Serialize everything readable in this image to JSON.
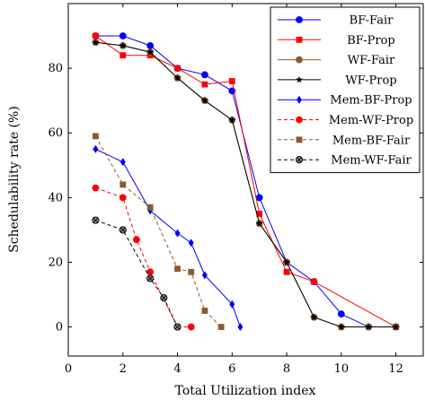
{
  "chart_data": {
    "type": "line",
    "title": "",
    "xlabel": "Total Utilization index",
    "ylabel": "Schedulability rate (%)",
    "xlim": [
      0,
      13
    ],
    "ylim": [
      -9,
      100
    ],
    "xticks": [
      0,
      2,
      4,
      6,
      8,
      10,
      12
    ],
    "yticks": [
      0,
      20,
      40,
      60,
      80
    ],
    "grid": false,
    "legend_position": "top-right",
    "series": [
      {
        "name": "BF-Fair",
        "color": "#0000ff",
        "dash": "solid",
        "marker": "circle",
        "x": [
          1,
          2,
          3,
          4,
          5,
          6,
          7,
          8,
          9,
          10,
          11,
          12
        ],
        "y": [
          90,
          90,
          87,
          80,
          78,
          73,
          40,
          20,
          14,
          4,
          0,
          0
        ]
      },
      {
        "name": "BF-Prop",
        "color": "#ff0000",
        "dash": "solid",
        "marker": "square",
        "x": [
          1,
          2,
          3,
          4,
          5,
          6,
          7,
          8,
          9,
          12
        ],
        "y": [
          90,
          84,
          84,
          80,
          75,
          76,
          35,
          17,
          14,
          0
        ]
      },
      {
        "name": "WF-Fair",
        "color": "#8b5a2b",
        "dash": "solid",
        "marker": "circle",
        "x": [
          1,
          2,
          3,
          4,
          5,
          6,
          7,
          8,
          9,
          10,
          11,
          12
        ],
        "y": [
          88,
          87,
          85,
          77,
          70,
          64,
          32,
          20,
          3,
          0,
          0,
          0
        ]
      },
      {
        "name": "WF-Prop",
        "color": "#000000",
        "dash": "solid",
        "marker": "star",
        "x": [
          1,
          2,
          3,
          4,
          5,
          6,
          7,
          8,
          9,
          10,
          11,
          12
        ],
        "y": [
          88,
          87,
          85,
          77,
          70,
          64,
          32,
          20,
          3,
          0,
          0,
          0
        ]
      },
      {
        "name": "Mem-BF-Prop",
        "color": "#0000ff",
        "dash": "solid",
        "marker": "diamond",
        "x": [
          1,
          2,
          3,
          4,
          4.5,
          5,
          6,
          6.3
        ],
        "y": [
          55,
          51,
          36,
          29,
          26,
          16,
          7,
          0
        ]
      },
      {
        "name": "Mem-WF-Prop",
        "color": "#ff0000",
        "dash": "dashed",
        "marker": "circle",
        "x": [
          1,
          2,
          2.5,
          3,
          4,
          4.5
        ],
        "y": [
          43,
          40,
          27,
          17,
          0,
          0
        ]
      },
      {
        "name": "Mem-BF-Fair",
        "color": "#8b5a2b",
        "dash": "dashed",
        "marker": "square",
        "x": [
          1,
          2,
          3,
          4,
          4.5,
          5,
          5.6
        ],
        "y": [
          59,
          44,
          37,
          18,
          17,
          5,
          0
        ]
      },
      {
        "name": "Mem-WF-Fair",
        "color": "#000000",
        "dash": "dashed",
        "marker": "otimes",
        "x": [
          1,
          2,
          3,
          3.5,
          4
        ],
        "y": [
          33,
          30,
          15,
          9,
          0
        ]
      }
    ]
  }
}
